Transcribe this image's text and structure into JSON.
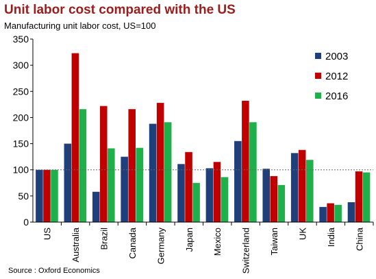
{
  "chart_data": {
    "type": "bar",
    "title": "Unit labor cost compared with the US",
    "subtitle": "Manufacturing unit labor cost, US=100",
    "source": "Source : Oxford Economics",
    "categories": [
      "US",
      "Australia",
      "Brazil",
      "Canada",
      "Germany",
      "Japan",
      "Mexico",
      "Switzerland",
      "Taiwan",
      "UK",
      "India",
      "China"
    ],
    "series": [
      {
        "name": "2003",
        "color": "#1f3f7a",
        "values": [
          100,
          150,
          58,
          125,
          188,
          111,
          103,
          155,
          102,
          132,
          29,
          38
        ]
      },
      {
        "name": "2012",
        "color": "#c00000",
        "values": [
          100,
          323,
          222,
          216,
          228,
          134,
          115,
          232,
          88,
          138,
          36,
          97
        ]
      },
      {
        "name": "2016",
        "color": "#1fb04c",
        "values": [
          100,
          216,
          141,
          142,
          191,
          75,
          86,
          191,
          71,
          119,
          33,
          95
        ]
      }
    ],
    "ylim": [
      0,
      350
    ],
    "yticks": [
      0,
      50,
      100,
      150,
      200,
      250,
      300,
      350
    ],
    "reference_line": 100,
    "legend": "top-right"
  }
}
